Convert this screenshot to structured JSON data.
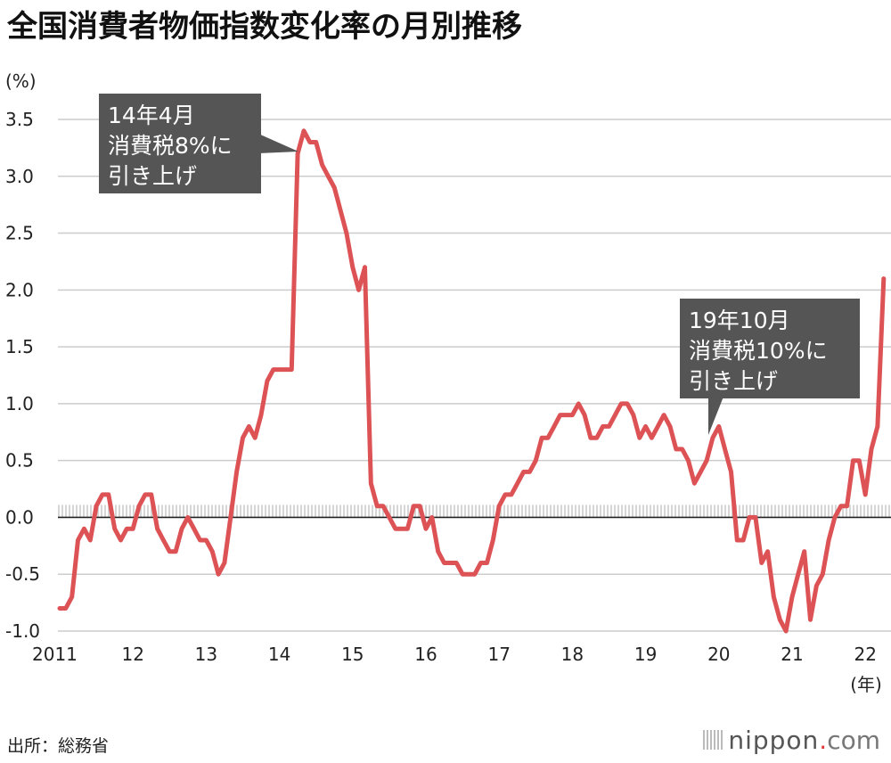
{
  "title": "全国消費者物価指数変化率の月別推移",
  "source": "出所：総務省",
  "logo": {
    "word": "nippon",
    "dot": ".",
    "tld": "com"
  },
  "colors": {
    "line": "#dc5255",
    "grid": "#cccccc",
    "zero_line": "#222222",
    "annotation_bg": "#555555",
    "annotation_text": "#ffffff"
  },
  "chart_data": {
    "type": "line",
    "title": "全国消費者物価指数変化率の月別推移",
    "ylabel": "(%)",
    "xunit": "(年)",
    "ylim": [
      -1.0,
      3.5
    ],
    "yticks": [
      "-1.0",
      "-0.5",
      "0.0",
      "0.5",
      "1.0",
      "1.5",
      "2.0",
      "2.5",
      "3.0",
      "3.5"
    ],
    "yticks_values": [
      -1.0,
      -0.5,
      0.0,
      0.5,
      1.0,
      1.5,
      2.0,
      2.5,
      3.0,
      3.5
    ],
    "xticks": [
      "2011",
      "12",
      "13",
      "14",
      "15",
      "16",
      "17",
      "18",
      "19",
      "20",
      "21",
      "22"
    ],
    "grid": true,
    "start": "2011-01",
    "frequency": "monthly",
    "values": [
      -0.8,
      -0.8,
      -0.7,
      -0.2,
      -0.1,
      -0.2,
      0.1,
      0.2,
      0.2,
      -0.1,
      -0.2,
      -0.1,
      -0.1,
      0.1,
      0.2,
      0.2,
      -0.1,
      -0.2,
      -0.3,
      -0.3,
      -0.1,
      0.0,
      -0.1,
      -0.2,
      -0.2,
      -0.3,
      -0.5,
      -0.4,
      0.0,
      0.4,
      0.7,
      0.8,
      0.7,
      0.9,
      1.2,
      1.3,
      1.3,
      1.3,
      1.3,
      3.2,
      3.4,
      3.3,
      3.3,
      3.1,
      3.0,
      2.9,
      2.7,
      2.5,
      2.2,
      2.0,
      2.2,
      0.3,
      0.1,
      0.1,
      0.0,
      -0.1,
      -0.1,
      -0.1,
      0.1,
      0.1,
      -0.1,
      0.0,
      -0.3,
      -0.4,
      -0.4,
      -0.4,
      -0.5,
      -0.5,
      -0.5,
      -0.4,
      -0.4,
      -0.2,
      0.1,
      0.2,
      0.2,
      0.3,
      0.4,
      0.4,
      0.5,
      0.7,
      0.7,
      0.8,
      0.9,
      0.9,
      0.9,
      1.0,
      0.9,
      0.7,
      0.7,
      0.8,
      0.8,
      0.9,
      1.0,
      1.0,
      0.9,
      0.7,
      0.8,
      0.7,
      0.8,
      0.9,
      0.8,
      0.6,
      0.6,
      0.5,
      0.3,
      0.4,
      0.5,
      0.7,
      0.8,
      0.6,
      0.4,
      -0.2,
      -0.2,
      0.0,
      0.0,
      -0.4,
      -0.3,
      -0.7,
      -0.9,
      -1.0,
      -0.7,
      -0.5,
      -0.3,
      -0.9,
      -0.6,
      -0.5,
      -0.2,
      0.0,
      0.1,
      0.1,
      0.5,
      0.5,
      0.2,
      0.6,
      0.8,
      2.1
    ],
    "annotations": [
      {
        "lines": [
          "14年4月",
          "消費税8%に",
          "引き上げ"
        ],
        "index": 39
      },
      {
        "lines": [
          "19年10月",
          "消費税10%に",
          "引き上げ"
        ],
        "index": 105
      }
    ]
  }
}
